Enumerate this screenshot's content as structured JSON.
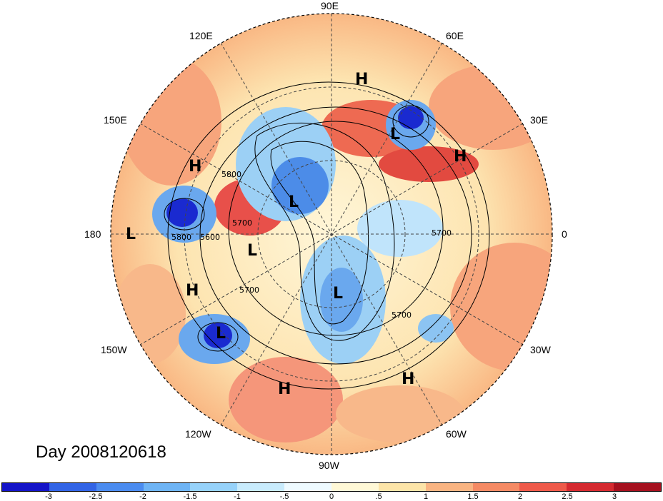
{
  "longitude_labels": {
    "lon_90e": "90E",
    "lon_60e": "60E",
    "lon_30e": "30E",
    "lon_0": "0",
    "lon_30w": "30W",
    "lon_60w": "60W",
    "lon_90w": "90W",
    "lon_120w": "120W",
    "lon_150w": "150W",
    "lon_180": "180",
    "lon_150e": "150E",
    "lon_120e": "120E"
  },
  "day_label": "Day 2008120618",
  "contour_labels": [
    "5800",
    "5700",
    "5600",
    "5800",
    "5700",
    "5700",
    "5700"
  ],
  "pressure_systems": [
    {
      "type": "H"
    },
    {
      "type": "L"
    },
    {
      "type": "H"
    },
    {
      "type": "H"
    },
    {
      "type": "L"
    },
    {
      "type": "L"
    },
    {
      "type": "L"
    },
    {
      "type": "H"
    },
    {
      "type": "L"
    },
    {
      "type": "L"
    },
    {
      "type": "H"
    },
    {
      "type": "H"
    }
  ],
  "colorbar": {
    "ticks": [
      "-3",
      "-2.5",
      "-2",
      "-1.5",
      "-1",
      "-.5",
      "0",
      ".5",
      "1",
      "1.5",
      "2",
      "2.5",
      "3"
    ],
    "colors": [
      "#1414c8",
      "#3264e6",
      "#4b8cf0",
      "#6eb4f5",
      "#96d2fa",
      "#c8ebfc",
      "#eefaff",
      "#fff8d6",
      "#fce4a8",
      "#f9b482",
      "#f58a64",
      "#ee5a4a",
      "#d52a30",
      "#a5101e"
    ]
  }
}
